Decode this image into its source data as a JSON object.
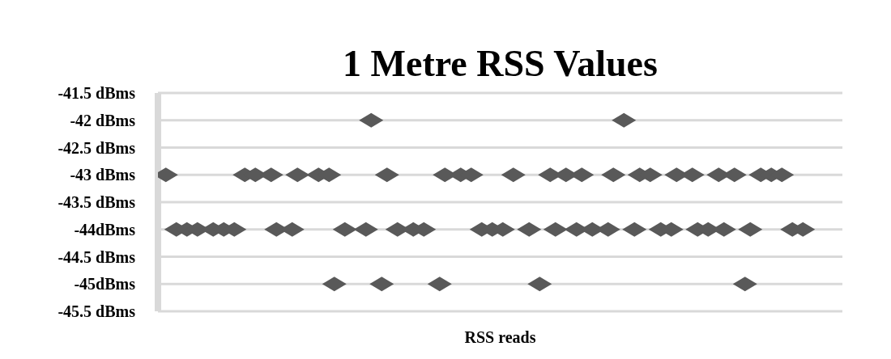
{
  "chart_data": {
    "type": "scatter",
    "title": "1 Metre RSS Values",
    "xlabel": "RSS reads",
    "categories": [
      null,
      null,
      null,
      null,
      null,
      null,
      null,
      null,
      null,
      null,
      null,
      null,
      null,
      null,
      null,
      null,
      null,
      null,
      null,
      null,
      null,
      null,
      null,
      null,
      null,
      null,
      null,
      null,
      null,
      null,
      null,
      null,
      null,
      null,
      null,
      null,
      null,
      null,
      null,
      null,
      null,
      null,
      null,
      null,
      null,
      null,
      null,
      null,
      null,
      null,
      null,
      null,
      null,
      null,
      null,
      null,
      null,
      null,
      null,
      null,
      null,
      null,
      null,
      null,
      null,
      null,
      null,
      null,
      null,
      null,
      null,
      null,
      null,
      null,
      null,
      null,
      null,
      null,
      null,
      null,
      null,
      null,
      null,
      null,
      null,
      null,
      null,
      null,
      null,
      null,
      null,
      null,
      null,
      null,
      null,
      null,
      null,
      null,
      null,
      null,
      null,
      null,
      null,
      null,
      null,
      null,
      null,
      null,
      null,
      null,
      null,
      null,
      null,
      null,
      null,
      null,
      null,
      null,
      null,
      null,
      null,
      null,
      null,
      null,
      null,
      null,
      null,
      null,
      null,
      null
    ],
    "values": [
      null,
      -43,
      null,
      -44,
      null,
      -44,
      null,
      -44,
      null,
      null,
      -44,
      null,
      -44,
      null,
      -44,
      null,
      -43,
      null,
      -43,
      null,
      null,
      -43,
      -44,
      null,
      null,
      -44,
      -43,
      null,
      null,
      null,
      -43,
      null,
      -43,
      -45,
      null,
      -44,
      null,
      null,
      null,
      -44,
      -42,
      null,
      -45,
      -43,
      null,
      -44,
      null,
      null,
      -44,
      null,
      -44,
      null,
      null,
      -45,
      -43,
      null,
      null,
      -43,
      null,
      -43,
      null,
      -44,
      null,
      -44,
      null,
      -44,
      null,
      -43,
      null,
      null,
      -44,
      null,
      -45,
      null,
      -43,
      -44,
      null,
      -43,
      null,
      -44,
      -43,
      null,
      -44,
      null,
      null,
      -44,
      -43,
      null,
      -42,
      null,
      -44,
      -43,
      null,
      -43,
      null,
      -44,
      null,
      -44,
      -43,
      null,
      null,
      -43,
      -44,
      null,
      -44,
      null,
      -43,
      -44,
      null,
      -43,
      null,
      -45,
      -44,
      null,
      -43,
      null,
      -43,
      null,
      -43,
      null,
      -44,
      null,
      -44,
      null,
      null,
      null,
      null,
      null,
      null,
      null
    ],
    "color": "#595959",
    "marker": "diamond",
    "ylim": [
      -45.5,
      -41.5
    ],
    "yticks": [
      {
        "value": -45.5,
        "label": "-45.5 dBms"
      },
      {
        "value": -45,
        "label": "-45dBms"
      },
      {
        "value": -44.5,
        "label": "-44.5 dBms"
      },
      {
        "value": -44,
        "label": "-44dBms"
      },
      {
        "value": -43.5,
        "label": "-43.5 dBms"
      },
      {
        "value": -43,
        "label": "-43 dBms"
      },
      {
        "value": -42.5,
        "label": "-42.5 dBms"
      },
      {
        "value": -42,
        "label": "-42 dBms"
      },
      {
        "value": -41.5,
        "label": "-41.5 dBms"
      }
    ],
    "grid": "y"
  }
}
